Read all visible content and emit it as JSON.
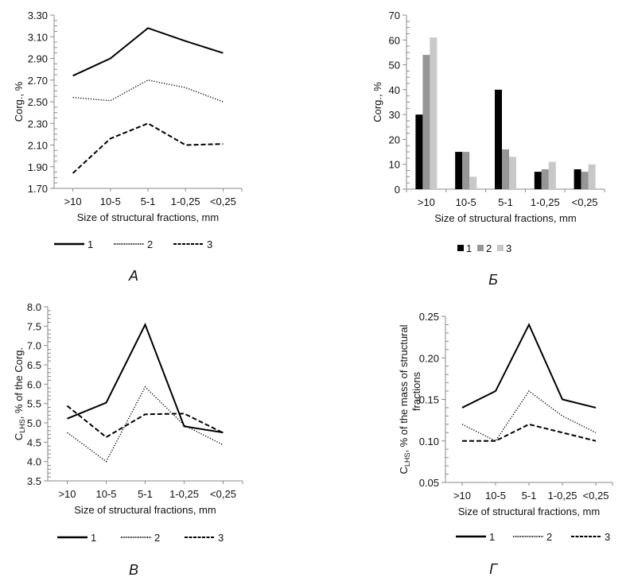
{
  "chart_data": [
    {
      "id": "A",
      "type": "line",
      "panel_label": "А",
      "title": "",
      "xlabel": "Size of structural fractions, mm",
      "ylabel": "Corg., %",
      "categories": [
        ">10",
        "10-5",
        "5-1",
        "1-0,25",
        "<0,25"
      ],
      "ylim": [
        1.7,
        3.3
      ],
      "yticks": [
        "1.70",
        "1.90",
        "2.10",
        "2.30",
        "2.50",
        "2.70",
        "2.90",
        "3.10",
        "3.30"
      ],
      "legend_position": "bottom",
      "grid": false,
      "series": [
        {
          "name": "1",
          "style": "solid",
          "values": [
            2.74,
            2.9,
            3.18,
            3.06,
            2.95
          ]
        },
        {
          "name": "2",
          "style": "dotted",
          "values": [
            2.54,
            2.51,
            2.7,
            2.63,
            2.5
          ]
        },
        {
          "name": "3",
          "style": "dashed",
          "values": [
            1.84,
            2.16,
            2.3,
            2.1,
            2.11
          ]
        }
      ]
    },
    {
      "id": "B_bar",
      "type": "bar",
      "panel_label": "Б",
      "title": "",
      "xlabel": "Size of structural fractions, mm",
      "ylabel": "Corg., %",
      "categories": [
        ">10",
        "10-5",
        "5-1",
        "1-0,25",
        "<0,25"
      ],
      "ylim": [
        0,
        70
      ],
      "yticks": [
        "0",
        "10",
        "20",
        "30",
        "40",
        "50",
        "60",
        "70"
      ],
      "legend_position": "bottom",
      "grid": false,
      "series": [
        {
          "name": "1",
          "color": "#000000",
          "values": [
            30,
            15,
            40,
            7,
            8
          ]
        },
        {
          "name": "2",
          "color": "#969696",
          "values": [
            54,
            15,
            16,
            8,
            7
          ]
        },
        {
          "name": "3",
          "color": "#c8c8c8",
          "values": [
            61,
            5,
            13,
            11,
            10
          ]
        }
      ]
    },
    {
      "id": "V",
      "type": "line",
      "panel_label": "В",
      "title": "",
      "xlabel": "Size of structural fractions, mm",
      "ylabel_main": "C",
      "ylabel_sub": "LHS",
      "ylabel_rest": ", % of the Corg.",
      "categories": [
        ">10",
        "10-5",
        "5-1",
        "1-0,25",
        "<0,25"
      ],
      "ylim": [
        3.5,
        8.0
      ],
      "yticks": [
        "3.5",
        "4.0",
        "4.5",
        "5.0",
        "5.5",
        "6.0",
        "6.5",
        "7.0",
        "7.5",
        "8.0"
      ],
      "legend_position": "bottom",
      "grid": false,
      "series": [
        {
          "name": "1",
          "style": "solid",
          "values": [
            5.11,
            5.52,
            7.54,
            4.91,
            4.75
          ]
        },
        {
          "name": "2",
          "style": "dotted",
          "values": [
            4.75,
            4.0,
            5.93,
            4.94,
            4.43
          ]
        },
        {
          "name": "3",
          "style": "dashed",
          "values": [
            5.44,
            4.63,
            5.22,
            5.24,
            4.74
          ]
        }
      ]
    },
    {
      "id": "G",
      "type": "line",
      "panel_label": "Г",
      "title": "",
      "xlabel": "Size of structural fractions, mm",
      "ylabel_main": "C",
      "ylabel_sub": "LHS",
      "ylabel_rest": ", % of the mass of structural",
      "ylabel_line2": "fractions",
      "categories": [
        ">10",
        "10-5",
        "5-1",
        "1-0,25",
        "<0,25"
      ],
      "ylim": [
        0.05,
        0.25
      ],
      "yticks": [
        "0.05",
        "0.10",
        "0.15",
        "0.20",
        "0.25"
      ],
      "legend_position": "bottom",
      "grid": false,
      "series": [
        {
          "name": "1",
          "style": "solid",
          "values": [
            0.14,
            0.16,
            0.24,
            0.15,
            0.14
          ]
        },
        {
          "name": "2",
          "style": "dotted",
          "values": [
            0.12,
            0.1,
            0.16,
            0.13,
            0.11
          ]
        },
        {
          "name": "3",
          "style": "dashed",
          "values": [
            0.1,
            0.1,
            0.12,
            0.11,
            0.1
          ]
        }
      ]
    }
  ]
}
